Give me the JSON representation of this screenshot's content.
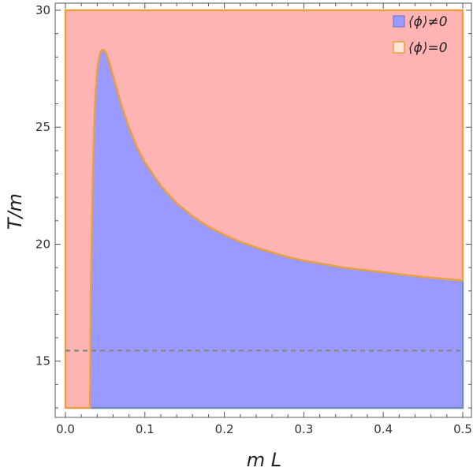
{
  "chart_data": {
    "type": "area",
    "xlabel": "m L",
    "ylabel": "T/m",
    "xlim": [
      0.0,
      0.5
    ],
    "ylim": [
      13.0,
      30.0
    ],
    "x_ticks": [
      "0.0",
      "0.1",
      "0.2",
      "0.3",
      "0.4",
      "0.5"
    ],
    "y_ticks": [
      "15",
      "20",
      "25",
      "30"
    ],
    "colors": {
      "broken": "#9999ff",
      "symmetric": "#ffb3b3",
      "boundary": "#e8a040",
      "blue_edge": "#7090c0",
      "dashed": "#888888",
      "frame": "#555555"
    },
    "series": [
      {
        "name": "⟨ϕ⟩≠0",
        "x": [
          0.031,
          0.032,
          0.034,
          0.036,
          0.038,
          0.04,
          0.042,
          0.044,
          0.046,
          0.048,
          0.05,
          0.052,
          0.055,
          0.06,
          0.065,
          0.07,
          0.08,
          0.09,
          0.1,
          0.12,
          0.14,
          0.16,
          0.18,
          0.2,
          0.22,
          0.25,
          0.28,
          0.3,
          0.35,
          0.4,
          0.45,
          0.5
        ],
        "y": [
          13.0,
          18.0,
          22.0,
          24.8,
          26.5,
          27.4,
          27.9,
          28.2,
          28.3,
          28.3,
          28.25,
          28.1,
          27.8,
          27.2,
          26.6,
          26.0,
          25.0,
          24.15,
          23.5,
          22.5,
          21.75,
          21.2,
          20.75,
          20.4,
          20.1,
          19.75,
          19.45,
          19.3,
          19.0,
          18.8,
          18.6,
          18.45
        ]
      },
      {
        "name": "⟨ϕ⟩=0"
      }
    ],
    "reference_line": {
      "y": 15.45,
      "style": "dashed"
    },
    "legend_position": "top-right"
  }
}
